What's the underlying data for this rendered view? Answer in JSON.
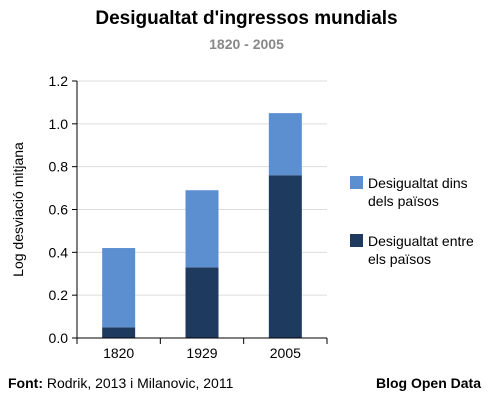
{
  "chart_data": {
    "type": "bar",
    "stacked": true,
    "title": "Desigualtat d'ingressos mundials",
    "subtitle": "1820 - 2005",
    "ylabel": "Log desviació mitjana",
    "xlabel": "",
    "ylim": [
      0,
      1.2
    ],
    "yticks": [
      "0.0",
      "0.2",
      "0.4",
      "0.6",
      "0.8",
      "1.0",
      "1.2"
    ],
    "grid": true,
    "legend_position": "right",
    "categories": [
      "1820",
      "1929",
      "2005"
    ],
    "series": [
      {
        "name": "Desigualtat entre els països",
        "values": [
          0.05,
          0.33,
          0.76
        ],
        "color": "#1f3a5f"
      },
      {
        "name": "Desigualtat dins dels països",
        "values": [
          0.37,
          0.36,
          0.29
        ],
        "color": "#5b8fd0"
      }
    ]
  },
  "legend": {
    "items": [
      {
        "label": "Desigualtat dins dels països",
        "color": "#5b8fd0"
      },
      {
        "label": "Desigualtat entre els països",
        "color": "#1f3a5f"
      }
    ]
  },
  "footer": {
    "source_label": "Font:",
    "source_text": " Rodrik, 2013 i Milanovic, 2011",
    "brand": "Blog Open Data"
  }
}
